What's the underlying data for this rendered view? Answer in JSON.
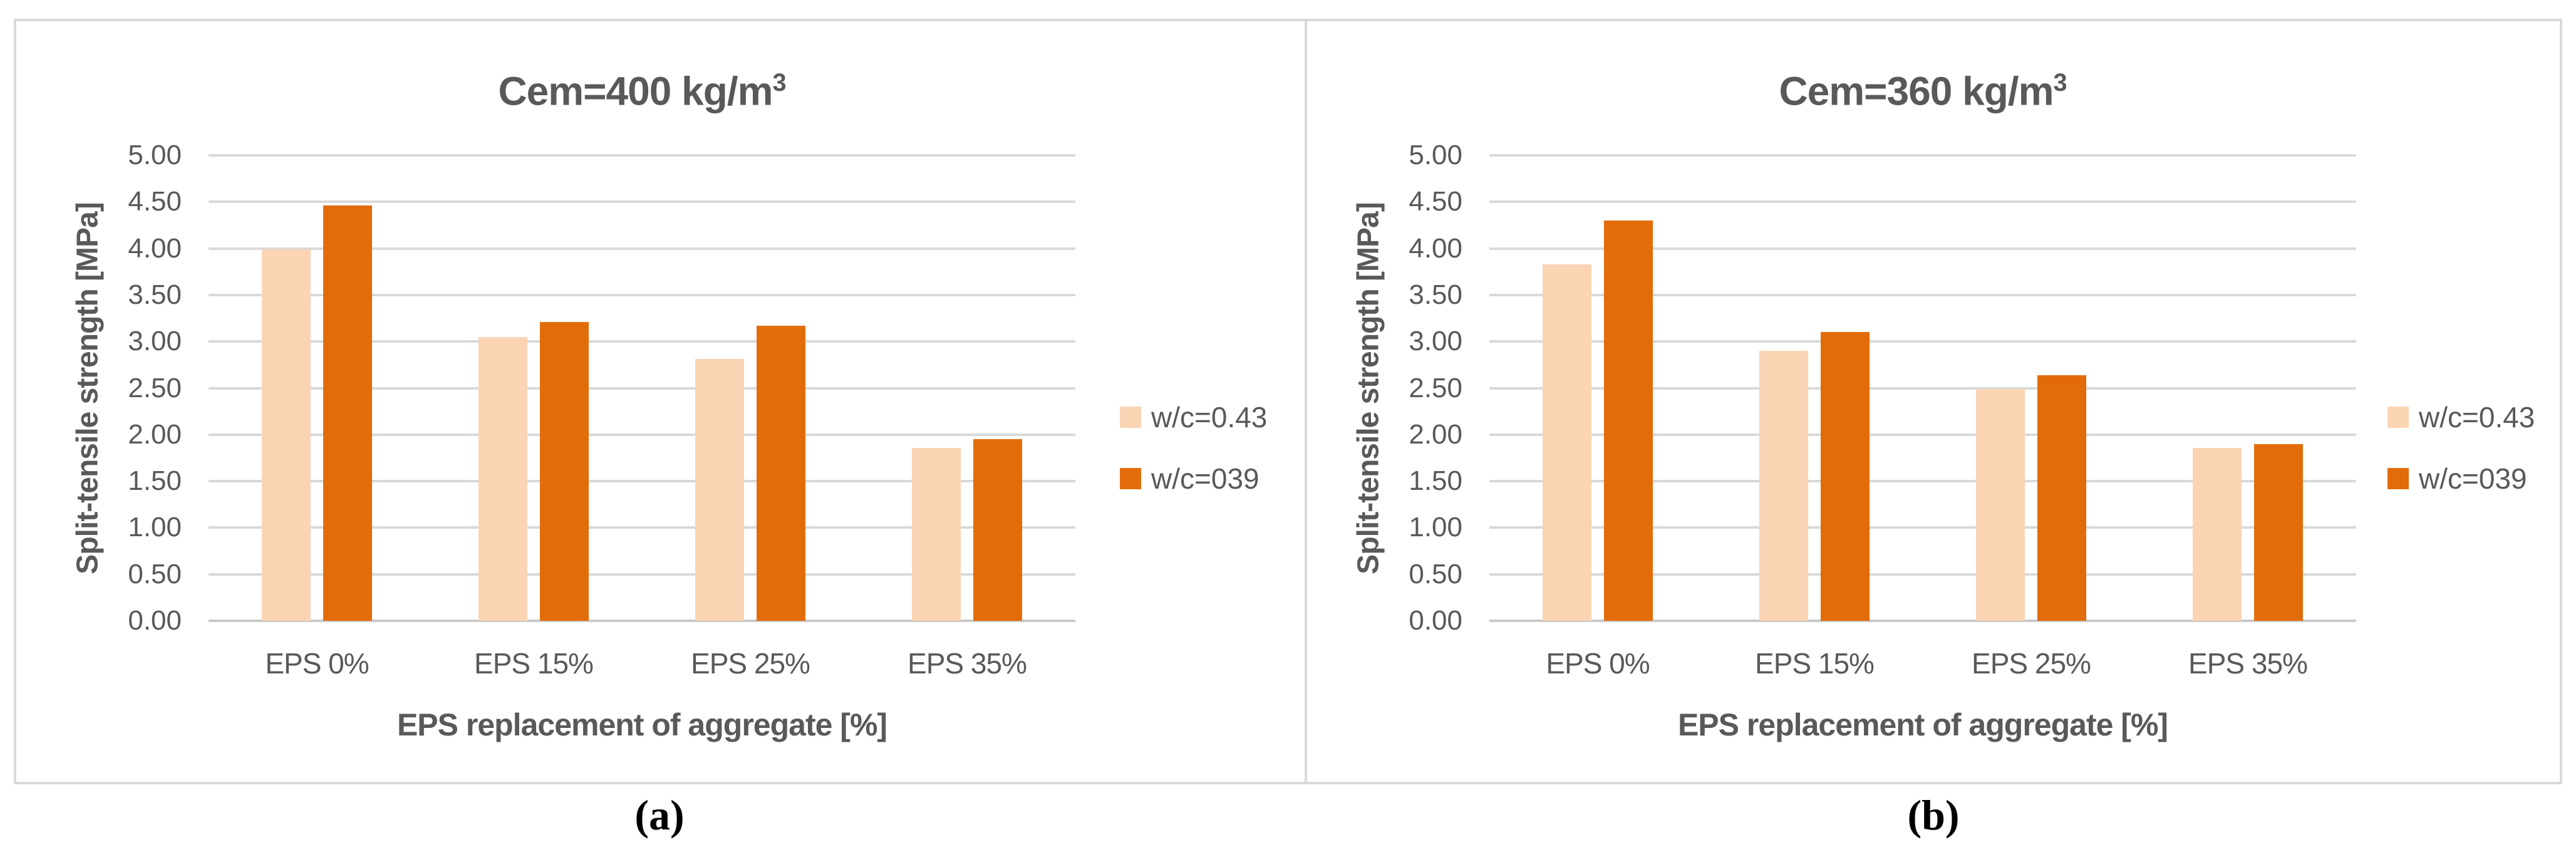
{
  "figure": {
    "background": "#ffffff",
    "border_color": "#D9D9D9",
    "divider_color": "#D9D9D9",
    "text_color": "#595959",
    "gridline_color": "#D9D9D9"
  },
  "chart_data": [
    {
      "type": "bar",
      "title": "Cem=400 kg/m³",
      "title_main": "Cem=400 kg/m",
      "title_sup": "3",
      "xlabel": "EPS replacement of aggregate [%]",
      "ylabel": "Split-tensile strength [MPa]",
      "categories": [
        "EPS 0%",
        "EPS 15%",
        "EPS 25%",
        "EPS 35%"
      ],
      "series": [
        {
          "name": "w/c=0.43",
          "color": "#FBD4B4",
          "values": [
            3.99,
            3.05,
            2.81,
            1.86
          ]
        },
        {
          "name": "w/c=039",
          "color": "#E36C0A",
          "values": [
            4.46,
            3.21,
            3.17,
            1.95
          ]
        }
      ],
      "ylim": [
        0,
        5
      ],
      "y_tick_step": 0.5,
      "y_tick_labels": [
        "0.00",
        "0.50",
        "1.00",
        "1.50",
        "2.00",
        "2.50",
        "3.00",
        "3.50",
        "4.00",
        "4.50",
        "5.00"
      ],
      "grid": true,
      "legend_position": "right",
      "caption": "(a)"
    },
    {
      "type": "bar",
      "title": "Cem=360 kg/m³",
      "title_main": "Cem=360 kg/m",
      "title_sup": "3",
      "xlabel": "EPS replacement of aggregate [%]",
      "ylabel": "Split-tensile strength [MPa]",
      "categories": [
        "EPS 0%",
        "EPS 15%",
        "EPS 25%",
        "EPS 35%"
      ],
      "series": [
        {
          "name": "w/c=0.43",
          "color": "#FBD4B4",
          "values": [
            3.83,
            2.9,
            2.49,
            1.86
          ]
        },
        {
          "name": "w/c=039",
          "color": "#E36C0A",
          "values": [
            4.3,
            3.1,
            2.64,
            1.9
          ]
        }
      ],
      "ylim": [
        0,
        5
      ],
      "y_tick_step": 0.5,
      "y_tick_labels": [
        "0.00",
        "0.50",
        "1.00",
        "1.50",
        "2.00",
        "2.50",
        "3.00",
        "3.50",
        "4.00",
        "4.50",
        "5.00"
      ],
      "grid": true,
      "legend_position": "right",
      "caption": "(b)"
    }
  ]
}
